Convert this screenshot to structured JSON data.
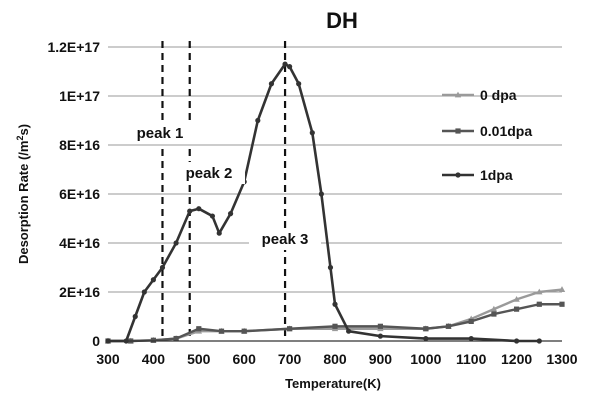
{
  "chart_data": {
    "type": "line",
    "title": "DH",
    "xlabel": "Temperature(K)",
    "ylabel": "Desorption Rate (/m²s)",
    "ylabel_base": "Desorption Rate (/m",
    "ylabel_sup": "2",
    "ylabel_tail": "s)",
    "xlim": [
      300,
      1300
    ],
    "ylim": [
      0,
      1.2e+17
    ],
    "x_ticks": [
      300,
      400,
      500,
      600,
      700,
      800,
      900,
      1000,
      1100,
      1200,
      1300
    ],
    "x_tick_labels": [
      "300",
      "400",
      "500",
      "600",
      "700",
      "800",
      "900",
      "1000",
      "1100",
      "1200",
      "1300"
    ],
    "y_ticks": [
      0,
      2e+16,
      4e+16,
      6e+16,
      8e+16,
      1e+17,
      1.2e+17
    ],
    "y_tick_labels": [
      "0",
      "2E+16",
      "4E+16",
      "6E+16",
      "8E+16",
      "1E+17",
      "1.2E+17"
    ],
    "grid": "horizontal",
    "legend_position": "right",
    "series": [
      {
        "name": "0 dpa",
        "color": "#9a9a9a",
        "marker": "triangle",
        "x": [
          300,
          350,
          400,
          450,
          500,
          550,
          600,
          700,
          800,
          900,
          1000,
          1050,
          1100,
          1150,
          1200,
          1250,
          1300
        ],
        "y": [
          0,
          0,
          300000000000000.0,
          1000000000000000.0,
          4000000000000000.0,
          4000000000000000.0,
          4000000000000000.0,
          5000000000000000.0,
          5000000000000000.0,
          5000000000000000.0,
          5000000000000000.0,
          6000000000000000.0,
          9000000000000000.0,
          1.3e+16,
          1.7e+16,
          2e+16,
          2.1e+16
        ]
      },
      {
        "name": "0.01dpa",
        "color": "#555555",
        "marker": "square",
        "x": [
          300,
          350,
          400,
          450,
          500,
          550,
          600,
          700,
          800,
          900,
          1000,
          1050,
          1100,
          1150,
          1200,
          1250,
          1300
        ],
        "y": [
          0,
          0,
          300000000000000.0,
          1000000000000000.0,
          5000000000000000.0,
          4000000000000000.0,
          4000000000000000.0,
          5000000000000000.0,
          6000000000000000.0,
          6000000000000000.0,
          5000000000000000.0,
          6000000000000000.0,
          8000000000000000.0,
          1.1e+16,
          1.3e+16,
          1.5e+16,
          1.5e+16
        ]
      },
      {
        "name": "1dpa",
        "color": "#333333",
        "marker": "circle",
        "x": [
          300,
          340,
          360,
          380,
          400,
          420,
          450,
          480,
          500,
          530,
          545,
          570,
          600,
          630,
          660,
          690,
          700,
          720,
          750,
          770,
          790,
          800,
          830,
          900,
          1000,
          1100,
          1200,
          1250
        ],
        "y": [
          0,
          0,
          1e+16,
          2e+16,
          2.5e+16,
          3e+16,
          4e+16,
          5.3e+16,
          5.4e+16,
          5.1e+16,
          4.4e+16,
          5.2e+16,
          6.5e+16,
          9e+16,
          1.05e+17,
          1.13e+17,
          1.12e+17,
          1.05e+17,
          8.5e+16,
          6e+16,
          3e+16,
          1.5e+16,
          4000000000000000.0,
          2000000000000000.0,
          1000000000000000.0,
          1000000000000000.0,
          0,
          0
        ]
      }
    ],
    "annotations": [
      {
        "text": "peak 1",
        "x": 420
      },
      {
        "text": "peak 2",
        "x": 480
      },
      {
        "text": "peak 3",
        "x": 690
      }
    ],
    "peak_lines_x": [
      420,
      480,
      690
    ]
  }
}
